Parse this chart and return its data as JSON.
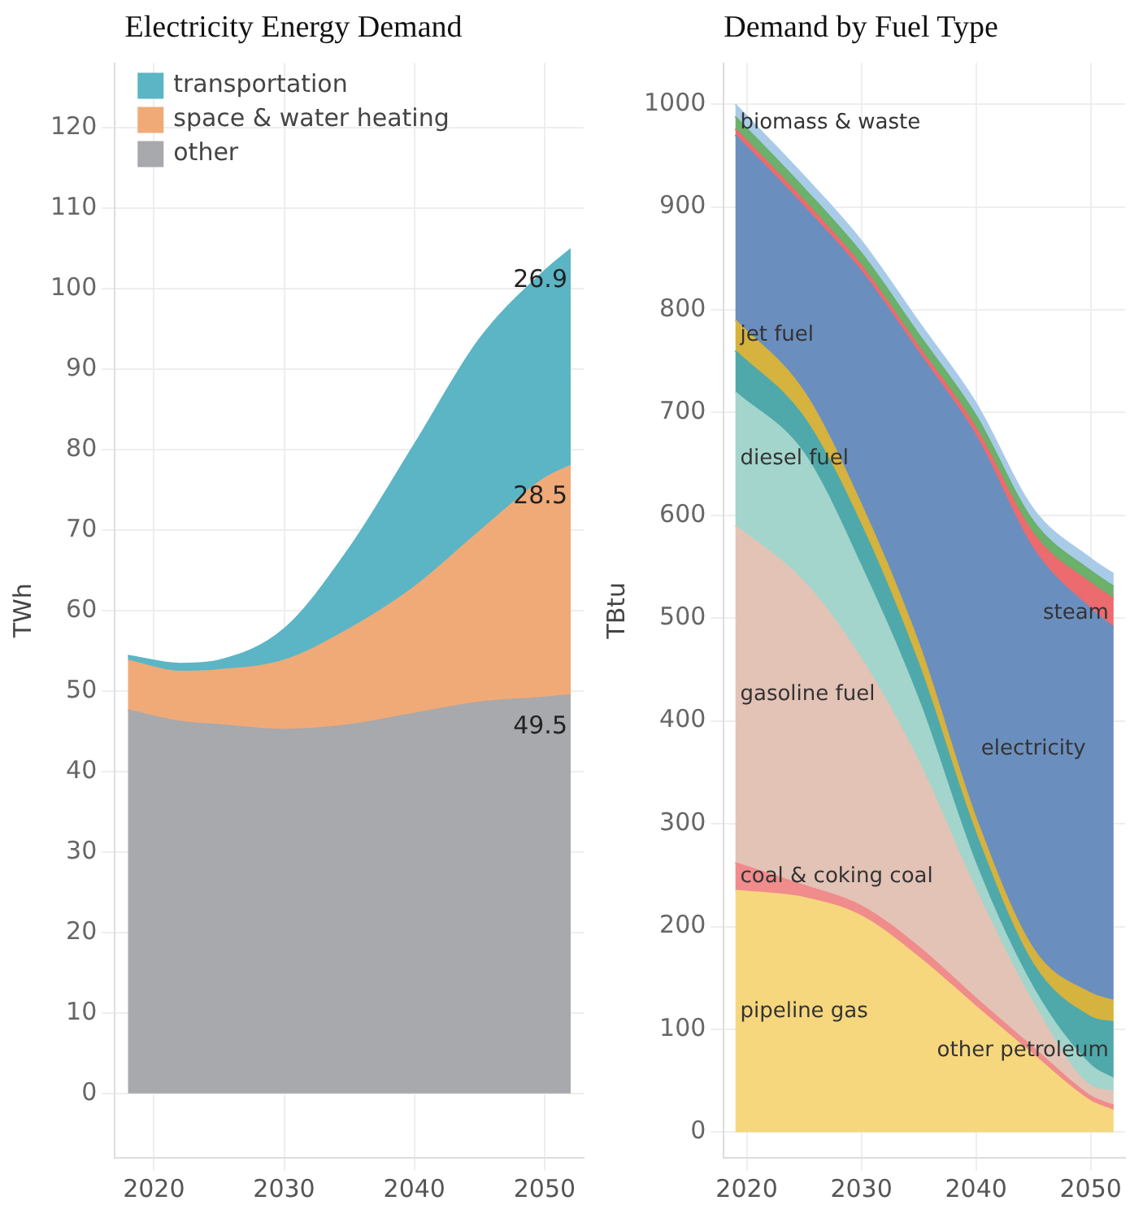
{
  "chart_data": [
    {
      "type": "area",
      "title": "Electricity Energy Demand",
      "ylabel": "TWh",
      "stacked": true,
      "grid": true,
      "legend": "top left",
      "x": [
        2018,
        2022,
        2025,
        2030,
        2035,
        2040,
        2045,
        2050,
        2052
      ],
      "series": [
        {
          "name": "other",
          "color": "#a8a9ac",
          "values": [
            47.6,
            46.2,
            45.8,
            45.2,
            45.8,
            47.2,
            48.6,
            49.2,
            49.5
          ],
          "value_labels": [
            null,
            null,
            null,
            null,
            null,
            null,
            null,
            null,
            "49.5"
          ]
        },
        {
          "name": "space & water heating",
          "color": "#f0aa78",
          "values": [
            6.2,
            6.2,
            6.8,
            8.6,
            11.9,
            15.7,
            21.2,
            27.2,
            28.5
          ],
          "value_labels": [
            null,
            null,
            null,
            null,
            null,
            null,
            null,
            null,
            "28.5"
          ]
        },
        {
          "name": "transportation",
          "color": "#5bb5c5",
          "values": [
            0.6,
            1.0,
            1.2,
            3.9,
            10.0,
            17.7,
            23.9,
            25.8,
            26.9
          ],
          "value_labels": [
            null,
            null,
            null,
            null,
            null,
            null,
            null,
            null,
            "26.9"
          ]
        }
      ],
      "xlim": [
        2017,
        2053
      ],
      "xticks": [
        2020,
        2030,
        2040,
        2050
      ],
      "ylim": [
        -8,
        128
      ],
      "yticks": [
        0,
        10,
        20,
        30,
        40,
        50,
        60,
        70,
        80,
        90,
        100,
        110,
        120
      ]
    },
    {
      "type": "area",
      "title": "Demand by Fuel Type",
      "ylabel": "TBtu",
      "stacked": true,
      "grid": true,
      "x": [
        2019,
        2025,
        2030,
        2035,
        2040,
        2045,
        2050,
        2052
      ],
      "series": [
        {
          "name": "pipeline gas",
          "color": "#f6d77e",
          "values": [
            235,
            228,
            210,
            170,
            122,
            75,
            30,
            21
          ]
        },
        {
          "name": "coal & coking coal",
          "color": "#f08c8c",
          "values": [
            27,
            12,
            10,
            10,
            8,
            7,
            5,
            5
          ]
        },
        {
          "name": "gasoline fuel",
          "color": "#e3c3b6",
          "values": [
            328,
            295,
            240,
            180,
            105,
            43,
            10,
            14
          ]
        },
        {
          "name": "diesel fuel",
          "color": "#a3d5cc",
          "values": [
            130,
            125,
            90,
            60,
            25,
            15,
            20,
            12
          ]
        },
        {
          "name": "other petroleum",
          "color": "#4fa9aa",
          "values": [
            40,
            35,
            40,
            35,
            30,
            23,
            47,
            55
          ]
        },
        {
          "name": "jet fuel",
          "color": "#d6b23e",
          "values": [
            30,
            25,
            20,
            20,
            15,
            15,
            23,
            21
          ]
        },
        {
          "name": "electricity",
          "color": "#6a8fbf",
          "values": [
            180,
            180,
            227,
            283,
            372,
            389,
            374,
            363
          ]
        },
        {
          "name": "steam",
          "color": "#ec6b6e",
          "values": [
            6,
            6,
            6,
            6,
            8,
            15,
            25,
            28
          ]
        },
        {
          "name": "biomass & waste",
          "color": "#6bb06b",
          "values": [
            12,
            12,
            12,
            12,
            12,
            12,
            12,
            12
          ]
        },
        {
          "color": "#a9cbe8",
          "values": [
            12,
            12,
            12,
            12,
            12,
            12,
            12,
            12
          ]
        }
      ],
      "xlim": [
        2018,
        2053
      ],
      "xticks": [
        2020,
        2030,
        2040,
        2050
      ],
      "ylim": [
        -25,
        1040
      ],
      "yticks": [
        0,
        100,
        200,
        300,
        400,
        500,
        600,
        700,
        800,
        900,
        1000
      ]
    }
  ]
}
